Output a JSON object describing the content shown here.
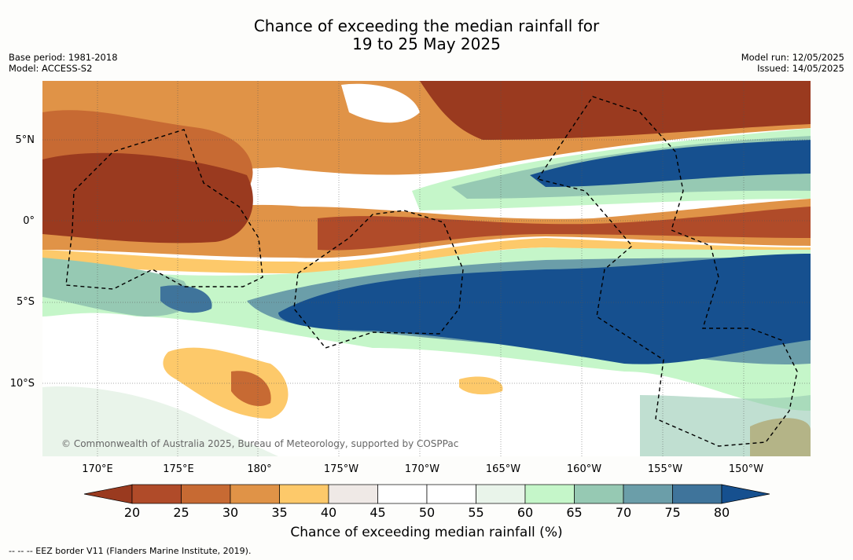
{
  "title": {
    "line1": "Chance of exceeding the median rainfall for",
    "line2": "19 to 25 May 2025"
  },
  "meta": {
    "base_period": "Base period: 1981-2018",
    "model": "Model: ACCESS-S2",
    "model_run": "Model run: 12/05/2025",
    "issued": "Issued: 14/05/2025"
  },
  "map": {
    "lat_labels": [
      "5°N",
      "0°",
      "5°S",
      "10°S"
    ],
    "lon_labels": [
      "170°E",
      "175°E",
      "180°",
      "175°W",
      "170°W",
      "165°W",
      "160°W",
      "155°W",
      "150°W"
    ],
    "copyright": "© Commonwealth of Australia 2025, Bureau of Meteorology, supported by COSPPac",
    "legend_line": "--  --  -- EEZ border V11 (Flanders Marine Institute, 2019)."
  },
  "colorbar": {
    "label": "Chance of exceeding median rainfall (%)",
    "ticks": [
      "20",
      "25",
      "30",
      "35",
      "40",
      "45",
      "50",
      "55",
      "60",
      "65",
      "70",
      "75",
      "80"
    ],
    "colors": [
      "#9a3a1f",
      "#b04b29",
      "#c76a33",
      "#e09347",
      "#fdc96a",
      "#efe9e6",
      "#ffffff",
      "#ffffff",
      "#e9f4ea",
      "#c5f6c9",
      "#96c9b3",
      "#6b9ea9",
      "#3f749b",
      "#16508f"
    ]
  }
}
